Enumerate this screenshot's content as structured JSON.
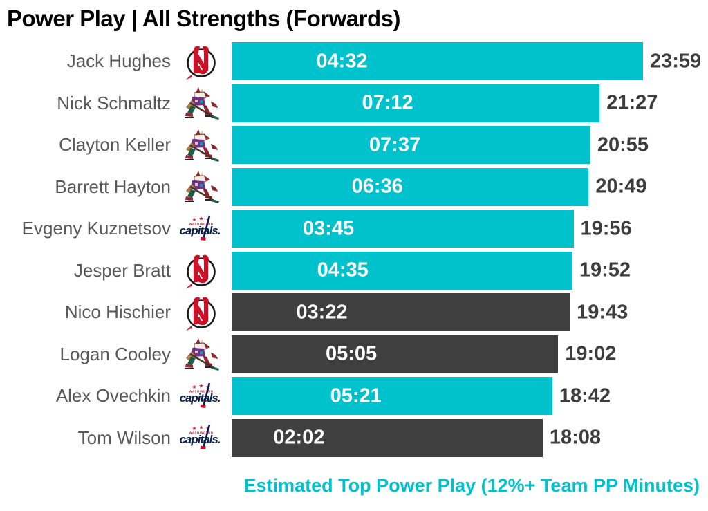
{
  "title": "Power Play | All Strengths (Forwards)",
  "caption": "Estimated Top Power Play (12%+ Team PP Minutes)",
  "colors": {
    "top_unit_bar": "#00c2cc",
    "other_bar": "#3f3f3f",
    "bar_value_text": "#ffffff",
    "total_text": "#3d3d3d",
    "player_name_text": "#595959",
    "caption_text": "#00c2cc",
    "title_text": "#000000"
  },
  "chart_data": {
    "type": "bar",
    "orientation": "horizontal",
    "title": "Power Play | All Strengths (Forwards)",
    "caption": "Estimated Top Power Play (12%+ Team PP Minutes)",
    "bar_length_metric": "total_toi",
    "inner_label_metric": "pp_toi",
    "max_total_sec": 1439,
    "bar_color_meaning": "teal bar = estimated top power play unit (12%+ team PP minutes), dark bar = not",
    "team_logo_names": {
      "njd": "new-jersey-devils-logo",
      "ari": "arizona-coyotes-logo",
      "wsh": "washington-capitals-logo"
    },
    "players": [
      {
        "name": "Jack Hughes",
        "team": "njd",
        "pp_toi": "04:32",
        "pp_sec": 272,
        "total_toi": "23:59",
        "total_sec": 1439,
        "top_unit": true
      },
      {
        "name": "Nick Schmaltz",
        "team": "ari",
        "pp_toi": "07:12",
        "pp_sec": 432,
        "total_toi": "21:27",
        "total_sec": 1287,
        "top_unit": true
      },
      {
        "name": "Clayton Keller",
        "team": "ari",
        "pp_toi": "07:37",
        "pp_sec": 457,
        "total_toi": "20:55",
        "total_sec": 1255,
        "top_unit": true
      },
      {
        "name": "Barrett Hayton",
        "team": "ari",
        "pp_toi": "06:36",
        "pp_sec": 396,
        "total_toi": "20:49",
        "total_sec": 1249,
        "top_unit": true
      },
      {
        "name": "Evgeny Kuznetsov",
        "team": "wsh",
        "pp_toi": "03:45",
        "pp_sec": 225,
        "total_toi": "19:56",
        "total_sec": 1196,
        "top_unit": true
      },
      {
        "name": "Jesper Bratt",
        "team": "njd",
        "pp_toi": "04:35",
        "pp_sec": 275,
        "total_toi": "19:52",
        "total_sec": 1192,
        "top_unit": true
      },
      {
        "name": "Nico Hischier",
        "team": "njd",
        "pp_toi": "03:22",
        "pp_sec": 202,
        "total_toi": "19:43",
        "total_sec": 1183,
        "top_unit": false
      },
      {
        "name": "Logan Cooley",
        "team": "ari",
        "pp_toi": "05:05",
        "pp_sec": 305,
        "total_toi": "19:02",
        "total_sec": 1142,
        "top_unit": false
      },
      {
        "name": "Alex Ovechkin",
        "team": "wsh",
        "pp_toi": "05:21",
        "pp_sec": 321,
        "total_toi": "18:42",
        "total_sec": 1122,
        "top_unit": true
      },
      {
        "name": "Tom Wilson",
        "team": "wsh",
        "pp_toi": "02:02",
        "pp_sec": 122,
        "total_toi": "18:08",
        "total_sec": 1088,
        "top_unit": false
      }
    ]
  }
}
